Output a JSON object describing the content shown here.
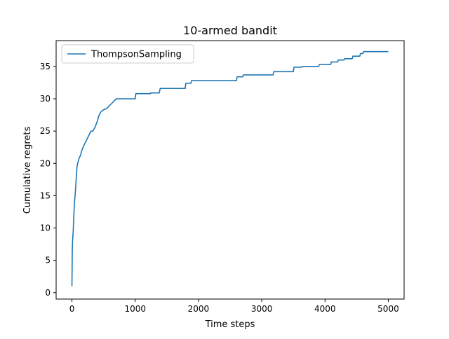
{
  "chart_data": {
    "type": "line",
    "title": "10-armed bandit",
    "xlabel": "Time steps",
    "ylabel": "Cumulative regrets",
    "xlim": [
      -250,
      5250
    ],
    "ylim": [
      -1,
      39
    ],
    "xticks": [
      0,
      1000,
      2000,
      3000,
      4000,
      5000
    ],
    "yticks": [
      0,
      5,
      10,
      15,
      20,
      25,
      30,
      35
    ],
    "grid": false,
    "legend_position": "top-left",
    "series": [
      {
        "name": "ThompsonSampling",
        "color": "#1f77b4",
        "x": [
          0,
          5,
          10,
          20,
          30,
          40,
          50,
          60,
          70,
          80,
          90,
          100,
          110,
          120,
          130,
          140,
          150,
          175,
          200,
          225,
          250,
          275,
          300,
          330,
          360,
          400,
          430,
          460,
          500,
          550,
          600,
          650,
          700,
          1000,
          1010,
          1240,
          1245,
          1380,
          1395,
          1790,
          1800,
          1880,
          1890,
          2600,
          2610,
          2700,
          2710,
          3180,
          3190,
          3500,
          3510,
          3640,
          3650,
          3900,
          3910,
          4090,
          4100,
          4200,
          4210,
          4300,
          4310,
          4430,
          4440,
          4550,
          4560,
          4600,
          4610,
          5000
        ],
        "y": [
          1,
          6.5,
          8,
          9.5,
          12,
          14,
          15,
          16.5,
          18,
          19.5,
          20,
          20.3,
          20.7,
          21,
          21.1,
          21.4,
          21.8,
          22.5,
          23,
          23.5,
          24,
          24.5,
          25,
          25,
          25.5,
          26.5,
          27.5,
          28,
          28.3,
          28.5,
          29,
          29.5,
          30,
          30,
          30.8,
          30.8,
          30.9,
          30.9,
          31.6,
          31.6,
          32.4,
          32.4,
          32.8,
          32.8,
          33.4,
          33.4,
          33.7,
          33.7,
          34.2,
          34.2,
          34.9,
          34.9,
          35,
          35,
          35.3,
          35.3,
          35.7,
          35.7,
          36,
          36,
          36.2,
          36.2,
          36.6,
          36.6,
          37,
          37,
          37.3,
          37.3
        ]
      }
    ]
  }
}
